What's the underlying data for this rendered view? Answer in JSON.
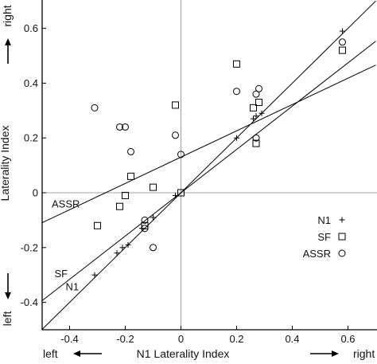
{
  "chart_data": {
    "type": "scatter",
    "xlabel": "N1 Laterality Index",
    "ylabel": "Laterality Index",
    "xlim": [
      -0.5,
      0.7
    ],
    "ylim": [
      -0.5,
      0.7
    ],
    "x_ticks": [
      -0.4,
      -0.2,
      0,
      0.2,
      0.4,
      0.6
    ],
    "x_tick_labels": [
      "-0.4",
      "-0.2",
      "0",
      "0.2",
      "0.4",
      "0.6"
    ],
    "y_ticks": [
      -0.4,
      -0.2,
      0,
      0.2,
      0.4,
      0.6
    ],
    "y_tick_labels": [
      "-0.4",
      "-0.2",
      "0",
      "0.2",
      "0.4",
      "0.6"
    ],
    "x_direction_labels": {
      "left": "left",
      "right": "right"
    },
    "y_direction_labels": {
      "down": "left",
      "up": "right"
    },
    "grid": false,
    "zero_lines": true,
    "legend_position": "lower-right",
    "series": [
      {
        "name": "N1",
        "marker": "plus",
        "fit_label": "N1",
        "fit": {
          "slope": 1.0,
          "intercept": 0.0
        },
        "points": [
          {
            "x": -0.31,
            "y": -0.3
          },
          {
            "x": -0.23,
            "y": -0.22
          },
          {
            "x": -0.21,
            "y": -0.2
          },
          {
            "x": -0.19,
            "y": -0.19
          },
          {
            "x": -0.14,
            "y": -0.13
          },
          {
            "x": -0.1,
            "y": -0.09
          },
          {
            "x": -0.02,
            "y": -0.01
          },
          {
            "x": 0.2,
            "y": 0.2
          },
          {
            "x": 0.26,
            "y": 0.27
          },
          {
            "x": 0.27,
            "y": 0.28
          },
          {
            "x": 0.29,
            "y": 0.29
          },
          {
            "x": 0.58,
            "y": 0.59
          }
        ]
      },
      {
        "name": "SF",
        "marker": "square",
        "fit_label": "SF",
        "fit": {
          "slope": 0.79,
          "intercept": 0.0
        },
        "points": [
          {
            "x": -0.3,
            "y": -0.12
          },
          {
            "x": -0.22,
            "y": -0.05
          },
          {
            "x": -0.2,
            "y": -0.01
          },
          {
            "x": -0.18,
            "y": 0.06
          },
          {
            "x": -0.13,
            "y": -0.12
          },
          {
            "x": -0.1,
            "y": 0.02
          },
          {
            "x": -0.02,
            "y": 0.32
          },
          {
            "x": 0.0,
            "y": 0.0
          },
          {
            "x": 0.2,
            "y": 0.47
          },
          {
            "x": 0.26,
            "y": 0.31
          },
          {
            "x": 0.28,
            "y": 0.33
          },
          {
            "x": 0.27,
            "y": 0.18
          },
          {
            "x": 0.58,
            "y": 0.52
          }
        ]
      },
      {
        "name": "ASSR",
        "marker": "circle",
        "fit_label": "ASSR",
        "fit": {
          "slope": 0.48,
          "intercept": 0.13
        },
        "points": [
          {
            "x": -0.31,
            "y": 0.31
          },
          {
            "x": -0.22,
            "y": 0.24
          },
          {
            "x": -0.2,
            "y": 0.24
          },
          {
            "x": -0.18,
            "y": 0.15
          },
          {
            "x": -0.13,
            "y": -0.1
          },
          {
            "x": -0.13,
            "y": -0.13
          },
          {
            "x": -0.1,
            "y": -0.2
          },
          {
            "x": -0.02,
            "y": 0.21
          },
          {
            "x": 0.0,
            "y": 0.14
          },
          {
            "x": 0.2,
            "y": 0.37
          },
          {
            "x": 0.27,
            "y": 0.36
          },
          {
            "x": 0.28,
            "y": 0.38
          },
          {
            "x": 0.27,
            "y": 0.2
          },
          {
            "x": 0.58,
            "y": 0.55
          }
        ]
      }
    ]
  }
}
